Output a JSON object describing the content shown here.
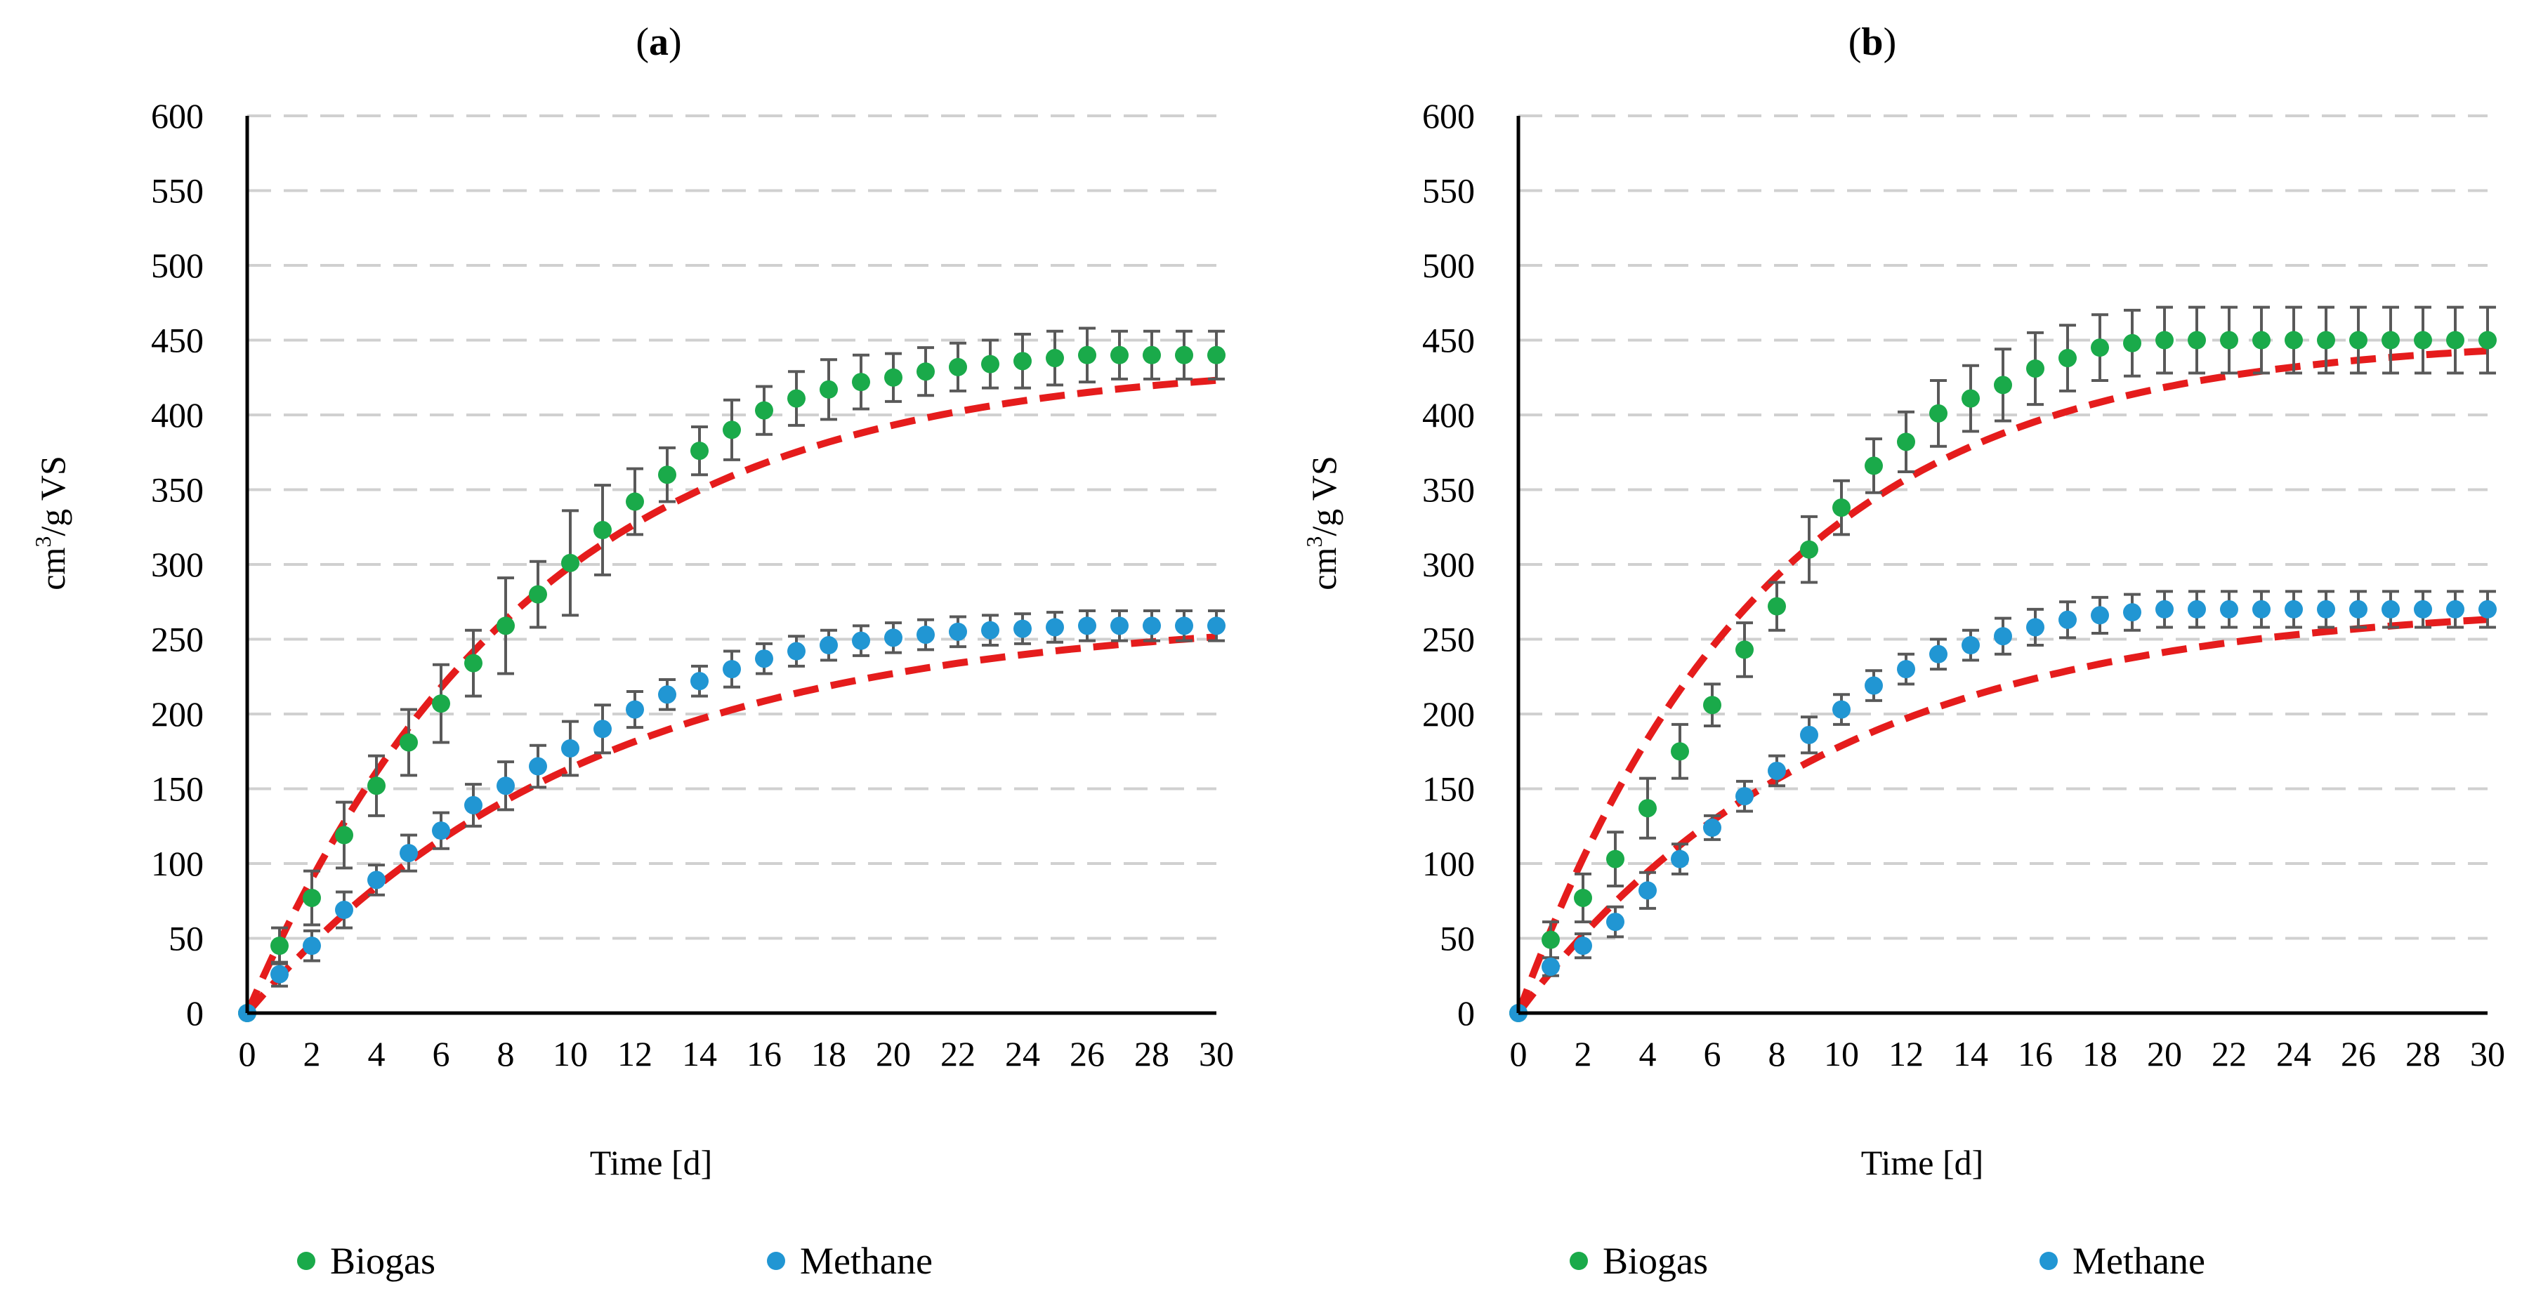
{
  "chart_data": [
    {
      "type": "scatter",
      "title": "(a)",
      "title_letter": "a",
      "xlabel": "Time [d]",
      "ylabel_base": "cm",
      "ylabel_sup": "3",
      "ylabel_rest": "/g VS",
      "xlim": [
        0,
        30
      ],
      "ylim": [
        0,
        600
      ],
      "xticks": [
        0,
        2,
        4,
        6,
        8,
        10,
        12,
        14,
        16,
        18,
        20,
        22,
        24,
        26,
        28,
        30
      ],
      "yticks": [
        0,
        50,
        100,
        150,
        200,
        250,
        300,
        350,
        400,
        450,
        500,
        550,
        600
      ],
      "grid": true,
      "legend_position": "bottom",
      "colors": {
        "biogas": "#1aaa4a",
        "methane": "#2196d3",
        "fit": "#e51c1c",
        "errorbar": "#595959"
      },
      "x": [
        0,
        1,
        2,
        3,
        4,
        5,
        6,
        7,
        8,
        9,
        10,
        11,
        12,
        13,
        14,
        15,
        16,
        17,
        18,
        19,
        20,
        21,
        22,
        23,
        24,
        25,
        26,
        27,
        28,
        29,
        30
      ],
      "series": [
        {
          "name": "Biogas",
          "values": [
            0,
            45,
            77,
            119,
            152,
            181,
            207,
            234,
            259,
            280,
            301,
            323,
            342,
            360,
            376,
            390,
            403,
            411,
            417,
            422,
            425,
            429,
            432,
            434,
            436,
            438,
            440,
            440,
            440,
            440,
            440
          ],
          "errors": [
            0,
            12,
            18,
            22,
            20,
            22,
            26,
            22,
            32,
            22,
            35,
            30,
            22,
            18,
            16,
            20,
            16,
            18,
            20,
            18,
            16,
            16,
            16,
            16,
            18,
            18,
            18,
            16,
            16,
            16,
            16
          ]
        },
        {
          "name": "Methane",
          "values": [
            0,
            26,
            45,
            69,
            89,
            107,
            122,
            139,
            152,
            165,
            177,
            190,
            203,
            213,
            222,
            230,
            237,
            242,
            246,
            249,
            251,
            253,
            255,
            256,
            257,
            258,
            259,
            259,
            259,
            259,
            259
          ],
          "errors": [
            0,
            8,
            10,
            12,
            10,
            12,
            12,
            14,
            16,
            14,
            18,
            16,
            12,
            10,
            10,
            12,
            10,
            10,
            10,
            10,
            10,
            10,
            10,
            10,
            10,
            10,
            10,
            10,
            10,
            10,
            10
          ]
        }
      ],
      "fits": [
        {
          "name": "Biogas fit",
          "A": 437,
          "k": 0.115
        },
        {
          "name": "Methane fit",
          "A": 267,
          "k": 0.095
        }
      ]
    },
    {
      "type": "scatter",
      "title": "(b)",
      "title_letter": "b",
      "xlabel": "Time [d]",
      "ylabel_base": "cm",
      "ylabel_sup": "3",
      "ylabel_rest": "/g VS",
      "xlim": [
        0,
        30
      ],
      "ylim": [
        0,
        600
      ],
      "xticks": [
        0,
        2,
        4,
        6,
        8,
        10,
        12,
        14,
        16,
        18,
        20,
        22,
        24,
        26,
        28,
        30
      ],
      "yticks": [
        0,
        50,
        100,
        150,
        200,
        250,
        300,
        350,
        400,
        450,
        500,
        550,
        600
      ],
      "grid": true,
      "legend_position": "bottom",
      "colors": {
        "biogas": "#1aaa4a",
        "methane": "#2196d3",
        "fit": "#e51c1c",
        "errorbar": "#595959"
      },
      "x": [
        0,
        1,
        2,
        3,
        4,
        5,
        6,
        7,
        8,
        9,
        10,
        11,
        12,
        13,
        14,
        15,
        16,
        17,
        18,
        19,
        20,
        21,
        22,
        23,
        24,
        25,
        26,
        27,
        28,
        29,
        30
      ],
      "series": [
        {
          "name": "Biogas",
          "values": [
            0,
            49,
            77,
            103,
            137,
            175,
            206,
            243,
            272,
            310,
            338,
            366,
            382,
            401,
            411,
            420,
            431,
            438,
            445,
            448,
            450,
            450,
            450,
            450,
            450,
            450,
            450,
            450,
            450,
            450,
            450
          ],
          "errors": [
            0,
            12,
            16,
            18,
            20,
            18,
            14,
            18,
            16,
            22,
            18,
            18,
            20,
            22,
            22,
            24,
            24,
            22,
            22,
            22,
            22,
            22,
            22,
            22,
            22,
            22,
            22,
            22,
            22,
            22,
            22
          ]
        },
        {
          "name": "Methane",
          "values": [
            0,
            31,
            45,
            61,
            82,
            103,
            124,
            145,
            162,
            186,
            203,
            219,
            230,
            240,
            246,
            252,
            258,
            263,
            266,
            268,
            270,
            270,
            270,
            270,
            270,
            270,
            270,
            270,
            270,
            270,
            270
          ],
          "errors": [
            0,
            6,
            8,
            10,
            12,
            10,
            8,
            10,
            10,
            12,
            10,
            10,
            10,
            10,
            10,
            12,
            12,
            12,
            12,
            12,
            12,
            12,
            12,
            12,
            12,
            12,
            12,
            12,
            12,
            12,
            12
          ]
        }
      ],
      "fits": [
        {
          "name": "Biogas fit",
          "A": 452,
          "k": 0.13
        },
        {
          "name": "Methane fit",
          "A": 275,
          "k": 0.105
        }
      ]
    }
  ],
  "legend": [
    {
      "label": "Biogas",
      "color": "#1aaa4a"
    },
    {
      "label": "Methane",
      "color": "#2196d3"
    }
  ]
}
